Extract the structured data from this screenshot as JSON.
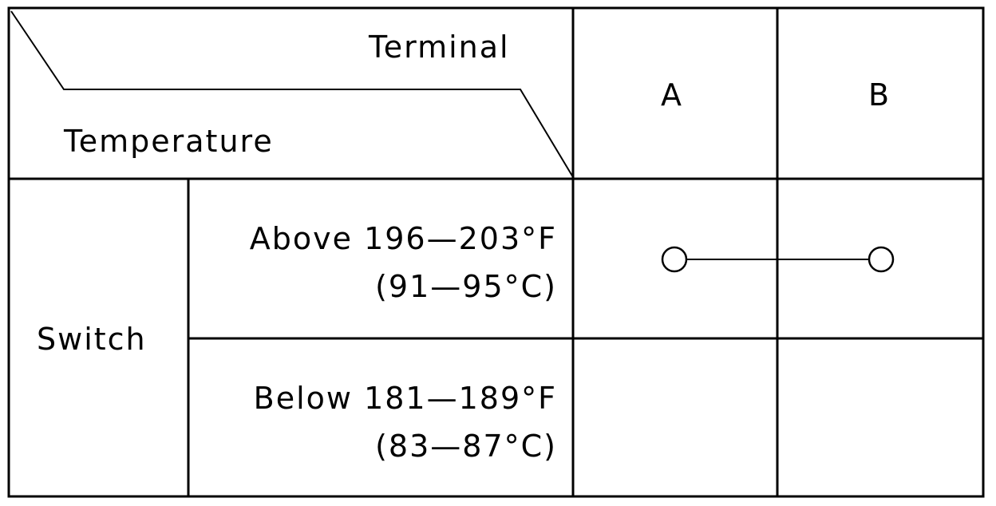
{
  "header": {
    "terminal_label": "Terminal",
    "temperature_label": "Temperature",
    "terminals": [
      "A",
      "B"
    ]
  },
  "rows": {
    "group_label": "Switch",
    "items": [
      {
        "line1": "Above 196—203°F",
        "line2": "(91—95°C)",
        "continuity": "A-B"
      },
      {
        "line1": "Below 181—189°F",
        "line2": "(83—87°C)",
        "continuity": ""
      }
    ]
  }
}
